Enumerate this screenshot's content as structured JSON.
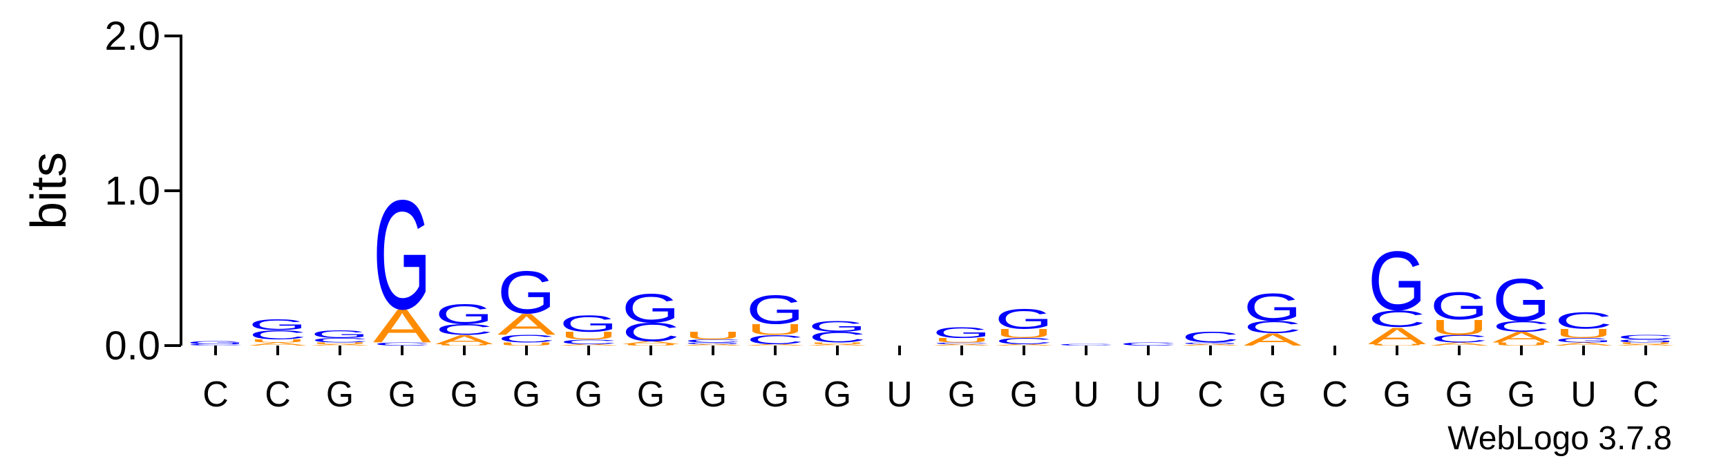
{
  "chart_data": {
    "type": "logo",
    "y_label": "bits",
    "credit": "WebLogo 3.7.8",
    "categories": [
      "C",
      "C",
      "G",
      "G",
      "G",
      "G",
      "G",
      "G",
      "G",
      "G",
      "G",
      "U",
      "G",
      "G",
      "U",
      "U",
      "C",
      "G",
      "C",
      "G",
      "G",
      "G",
      "U",
      "C"
    ],
    "ylim": [
      0,
      2
    ],
    "yticks": [
      {
        "value": 0,
        "label": "0.0"
      },
      {
        "value": 1,
        "label": "1.0"
      },
      {
        "value": 2,
        "label": "2.0"
      }
    ],
    "series": [
      {
        "name": "A",
        "color": "#ff8c00",
        "values": [
          0,
          0.02,
          0.01,
          0.22,
          0.06,
          0.14,
          0.01,
          0.02,
          0.01,
          0.01,
          0.01,
          0,
          0.01,
          0.01,
          0,
          0,
          0.01,
          0.08,
          0,
          0.11,
          0.02,
          0.07,
          0.02,
          0.01
        ]
      },
      {
        "name": "C",
        "color": "#0000ff",
        "values": [
          0.01,
          0.06,
          0.03,
          0.02,
          0.07,
          0.05,
          0.03,
          0.12,
          0.02,
          0.06,
          0.07,
          0,
          0.01,
          0.04,
          0.01,
          0.02,
          0.07,
          0.08,
          0,
          0.11,
          0.05,
          0.07,
          0.11,
          0.03
        ]
      },
      {
        "name": "G",
        "color": "#0000ff",
        "values": [
          0.02,
          0.07,
          0.05,
          0.72,
          0.13,
          0.28,
          0.11,
          0.19,
          0.01,
          0.19,
          0.07,
          0,
          0.07,
          0.13,
          0,
          0,
          0.01,
          0.18,
          0,
          0.39,
          0.18,
          0.28,
          0.03,
          0.02
        ]
      },
      {
        "name": "U",
        "color": "#ff8c00",
        "values": [
          0,
          0.02,
          0.01,
          0,
          0.01,
          0.02,
          0.05,
          0.01,
          0.05,
          0.07,
          0.01,
          0,
          0.03,
          0.06,
          0,
          0,
          0,
          0,
          0,
          0.01,
          0.1,
          0.02,
          0.06,
          0.01
        ]
      }
    ]
  }
}
